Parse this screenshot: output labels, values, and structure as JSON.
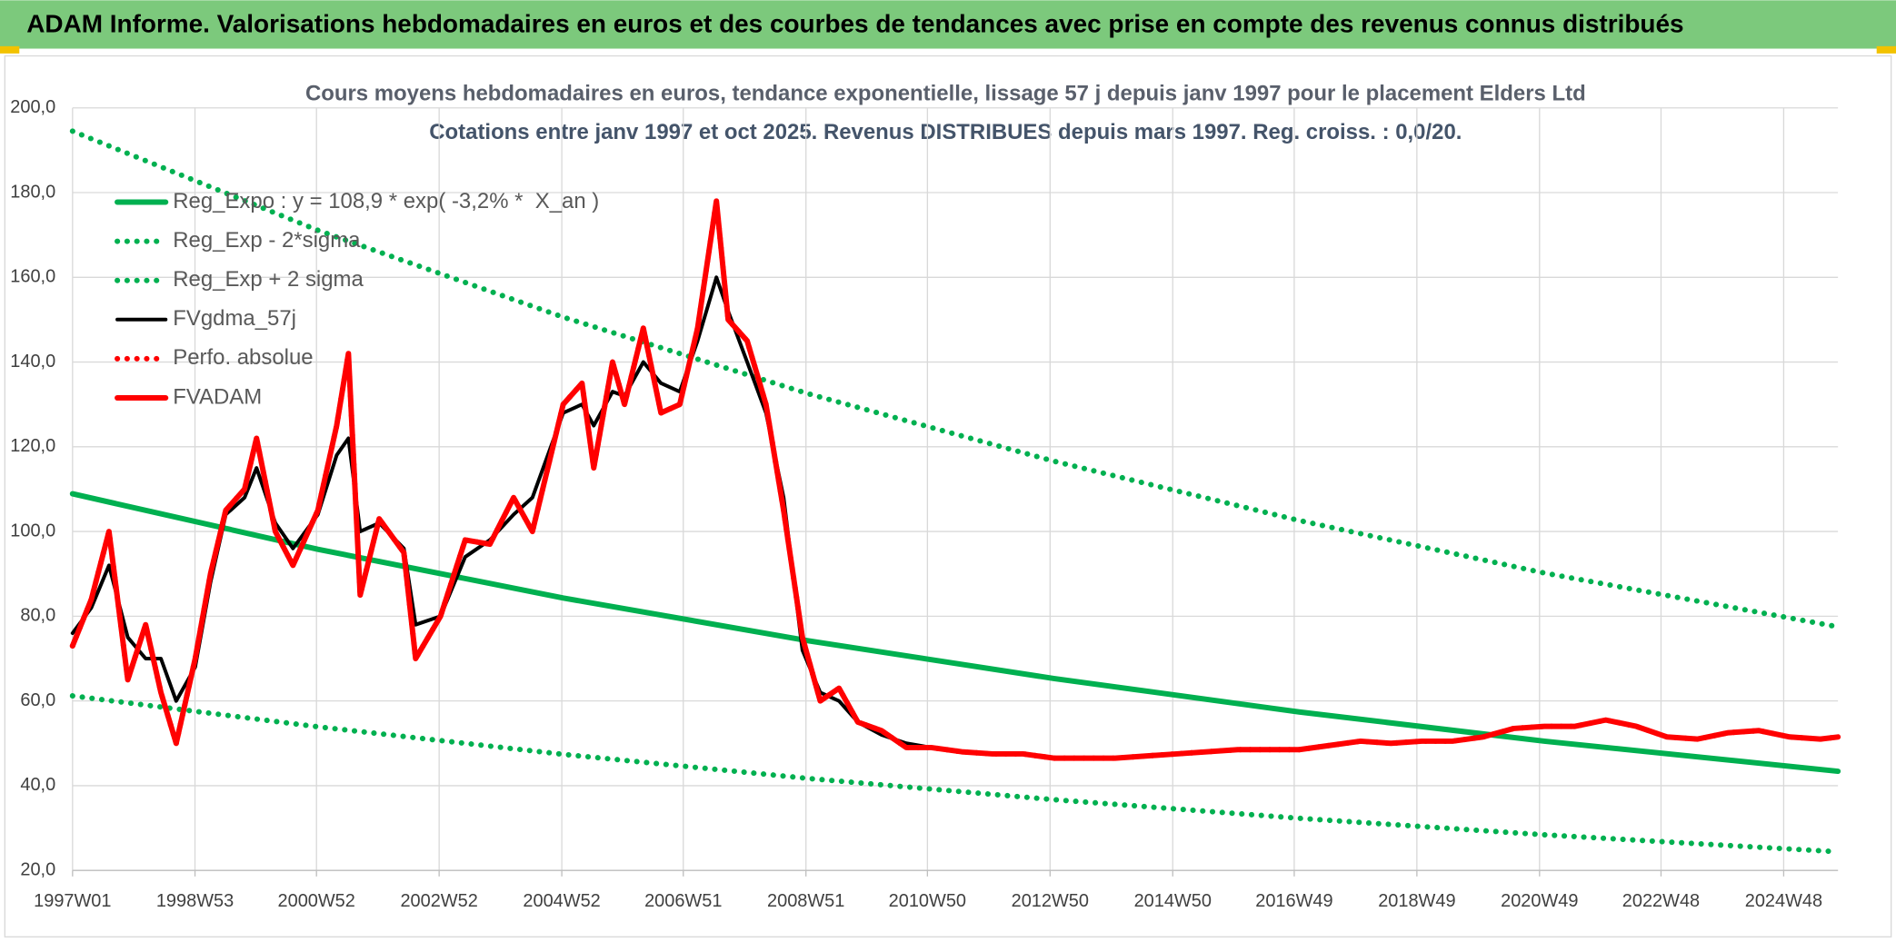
{
  "header": {
    "title": "ADAM Informe. Valorisations hebdomadaires en euros et des courbes de tendances avec prise en compte des revenus connus distribués"
  },
  "chart_data": {
    "type": "line",
    "title": "Cours moyens hebdomadaires en euros, tendance exponentielle, lissage 57 j depuis janv 1997 pour le placement Elders Ltd",
    "subtitle": "Cotations entre janv 1997 et oct 2025. Revenus DISTRIBUES depuis mars 1997. Reg. croiss. : 0,0/20.",
    "xlim": [
      "1997W01",
      "2025W42"
    ],
    "xticks": [
      "1997W01",
      "1998W53",
      "2000W52",
      "2002W52",
      "2004W52",
      "2006W51",
      "2008W51",
      "2010W50",
      "2012W50",
      "2014W50",
      "2016W49",
      "2018W49",
      "2020W49",
      "2022W48",
      "2024W48"
    ],
    "ylim": [
      20,
      200
    ],
    "yticks": [
      {
        "value": 20,
        "label": "20,0"
      },
      {
        "value": 40,
        "label": "40,0"
      },
      {
        "value": 60,
        "label": "60,0"
      },
      {
        "value": 80,
        "label": "80,0"
      },
      {
        "value": 100,
        "label": "100,0"
      },
      {
        "value": 120,
        "label": "120,0"
      },
      {
        "value": 140,
        "label": "140,0"
      },
      {
        "value": 160,
        "label": "160,0"
      },
      {
        "value": 180,
        "label": "180,0"
      },
      {
        "value": 200,
        "label": "200,0"
      }
    ],
    "grid": true,
    "legend": "upper left",
    "series": [
      {
        "name": "Reg_Expo : y = 108,9 * exp( -3,2% *  X_an )",
        "color": "#00b050",
        "line_style": "solid",
        "x": [
          "1997W01",
          "2001W01",
          "2005W01",
          "2009W01",
          "2013W01",
          "2017W01",
          "2021W01",
          "2025W42"
        ],
        "values": [
          108.9,
          95.8,
          84.3,
          74.2,
          65.3,
          57.4,
          50.5,
          43.4
        ]
      },
      {
        "name": "Reg_Exp - 2*sigma",
        "color": "#00b050",
        "line_style": "dotted",
        "x": [
          "1997W01",
          "2001W01",
          "2005W01",
          "2009W01",
          "2013W01",
          "2017W01",
          "2021W01",
          "2025W42"
        ],
        "values": [
          61.2,
          53.9,
          47.4,
          41.7,
          36.7,
          32.3,
          28.4,
          24.4
        ]
      },
      {
        "name": "Reg_Exp + 2 sigma",
        "color": "#00b050",
        "line_style": "dotted",
        "x": [
          "1997W01",
          "2001W01",
          "2005W01",
          "2009W01",
          "2013W01",
          "2017W01",
          "2021W01",
          "2025W42"
        ],
        "values": [
          194.5,
          171.1,
          150.6,
          132.5,
          116.6,
          102.6,
          90.2,
          77.5
        ]
      },
      {
        "name": "FVgdma_57j",
        "color": "#000000",
        "line_style": "solid",
        "x": [
          "1997W01",
          "1997W17",
          "1997W32",
          "1997W48",
          "1998W11",
          "1998W24",
          "1998W37",
          "1999W01",
          "1999W14",
          "1999W27",
          "1999W43",
          "2000W01",
          "2000W17",
          "2000W32",
          "2001W01",
          "2001W17",
          "2001W27",
          "2001W37",
          "2002W01",
          "2002W22",
          "2002W32",
          "2003W01",
          "2003W22",
          "2003W43",
          "2004W11",
          "2004W27",
          "2005W01",
          "2005W17",
          "2005W27",
          "2005W43",
          "2006W01",
          "2006W17",
          "2006W32",
          "2006W48",
          "2007W11",
          "2007W27",
          "2007W37",
          "2008W01",
          "2008W17",
          "2008W32",
          "2008W48",
          "2009W11",
          "2009W27",
          "2009W43",
          "2010W11",
          "2010W32",
          "2011W01",
          "2011W27",
          "2012W01",
          "2012W27",
          "2013W01",
          "2014W01",
          "2014W27",
          "2015W01",
          "2016W01",
          "2017W01",
          "2017W27",
          "2018W01",
          "2018W27",
          "2019W01",
          "2019W27",
          "2020W01",
          "2020W27",
          "2021W01",
          "2021W27",
          "2022W01",
          "2022W27",
          "2023W01",
          "2023W27",
          "2024W01",
          "2024W27",
          "2025W01",
          "2025W27",
          "2025W42"
        ],
        "values": [
          76,
          82,
          92,
          75,
          70,
          70,
          60,
          68,
          88,
          104,
          108,
          115,
          102,
          96,
          104,
          118,
          122,
          100,
          102,
          96,
          78,
          80,
          94,
          98,
          104,
          108,
          128,
          130,
          125,
          133,
          132,
          140,
          135,
          133,
          145,
          160,
          152,
          140,
          128,
          108,
          72,
          62,
          60,
          55,
          52,
          50,
          49,
          48,
          47.5,
          47.5,
          46.5,
          46.5,
          47,
          47.5,
          48.5,
          48.5,
          49.5,
          50.5,
          50,
          50.5,
          50.5,
          51.5,
          53.5,
          54,
          54,
          55.5,
          54,
          51.5,
          51,
          52.5,
          53,
          51.5,
          51,
          51.5
        ]
      },
      {
        "name": "Perfo. absolue",
        "color": "#ff0000",
        "line_style": "dotted",
        "x": [
          "1997W01",
          "1997W17",
          "1997W32",
          "1997W48",
          "1998W11",
          "1998W24",
          "1998W37",
          "1999W01",
          "1999W14",
          "1999W27",
          "1999W43",
          "2000W01",
          "2000W17",
          "2000W32",
          "2001W01",
          "2001W17",
          "2001W27",
          "2001W37",
          "2002W01",
          "2002W22",
          "2002W32",
          "2003W01",
          "2003W22",
          "2003W43",
          "2004W11",
          "2004W27",
          "2005W01",
          "2005W17",
          "2005W27",
          "2005W43",
          "2006W01",
          "2006W17",
          "2006W32",
          "2006W48",
          "2007W11",
          "2007W27",
          "2007W37",
          "2008W01",
          "2008W17",
          "2008W32",
          "2008W48",
          "2009W11",
          "2009W27",
          "2009W43",
          "2010W11",
          "2010W32",
          "2011W01",
          "2011W27",
          "2012W01",
          "2012W27",
          "2013W01",
          "2014W01",
          "2014W27",
          "2015W01",
          "2016W01",
          "2017W01",
          "2017W27",
          "2018W01",
          "2018W27",
          "2019W01",
          "2019W27",
          "2020W01",
          "2020W27",
          "2021W01",
          "2021W27",
          "2022W01",
          "2022W27",
          "2023W01",
          "2023W27",
          "2024W01",
          "2024W27",
          "2025W01",
          "2025W27",
          "2025W42"
        ],
        "values": [
          73,
          84,
          100,
          65,
          78,
          62,
          50,
          70,
          90,
          105,
          110,
          122,
          100,
          92,
          105,
          125,
          142,
          85,
          103,
          95,
          70,
          80,
          98,
          97,
          108,
          100,
          130,
          135,
          115,
          140,
          130,
          148,
          128,
          130,
          148,
          178,
          150,
          145,
          130,
          105,
          75,
          60,
          63,
          55,
          53,
          49,
          49,
          48,
          47.5,
          47.5,
          46.5,
          46.5,
          47,
          47.5,
          48.5,
          48.5,
          49.5,
          50.5,
          50,
          50.5,
          50.5,
          51.5,
          53.5,
          54,
          54,
          55.5,
          54,
          51.5,
          51,
          52.5,
          53,
          51.5,
          51,
          51.5
        ]
      },
      {
        "name": "FVADAM",
        "color": "#ff0000",
        "line_style": "solid",
        "x": [
          "1997W01",
          "1997W17",
          "1997W32",
          "1997W48",
          "1998W11",
          "1998W24",
          "1998W37",
          "1999W01",
          "1999W14",
          "1999W27",
          "1999W43",
          "2000W01",
          "2000W17",
          "2000W32",
          "2001W01",
          "2001W17",
          "2001W27",
          "2001W37",
          "2002W01",
          "2002W22",
          "2002W32",
          "2003W01",
          "2003W22",
          "2003W43",
          "2004W11",
          "2004W27",
          "2005W01",
          "2005W17",
          "2005W27",
          "2005W43",
          "2006W01",
          "2006W17",
          "2006W32",
          "2006W48",
          "2007W11",
          "2007W27",
          "2007W37",
          "2008W01",
          "2008W17",
          "2008W32",
          "2008W48",
          "2009W11",
          "2009W27",
          "2009W43",
          "2010W11",
          "2010W32",
          "2011W01",
          "2011W27",
          "2012W01",
          "2012W27",
          "2013W01",
          "2014W01",
          "2014W27",
          "2015W01",
          "2016W01",
          "2017W01",
          "2017W27",
          "2018W01",
          "2018W27",
          "2019W01",
          "2019W27",
          "2020W01",
          "2020W27",
          "2021W01",
          "2021W27",
          "2022W01",
          "2022W27",
          "2023W01",
          "2023W27",
          "2024W01",
          "2024W27",
          "2025W01",
          "2025W27",
          "2025W42"
        ],
        "values": [
          73,
          84,
          100,
          65,
          78,
          62,
          50,
          70,
          90,
          105,
          110,
          122,
          100,
          92,
          105,
          125,
          142,
          85,
          103,
          95,
          70,
          80,
          98,
          97,
          108,
          100,
          130,
          135,
          115,
          140,
          130,
          148,
          128,
          130,
          148,
          178,
          150,
          145,
          130,
          105,
          75,
          60,
          63,
          55,
          53,
          49,
          49,
          48,
          47.5,
          47.5,
          46.5,
          46.5,
          47,
          47.5,
          48.5,
          48.5,
          49.5,
          50.5,
          50,
          50.5,
          50.5,
          51.5,
          53.5,
          54,
          54,
          55.5,
          54,
          51.5,
          51,
          52.5,
          53,
          51.5,
          51,
          51.5
        ]
      }
    ]
  }
}
